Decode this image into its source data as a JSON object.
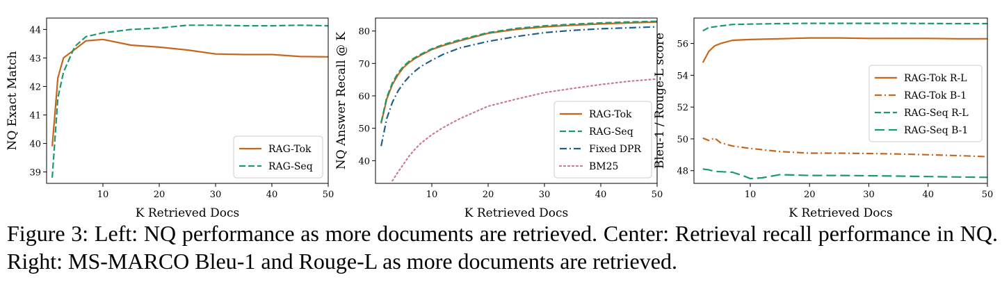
{
  "caption": "Figure 3: Left: NQ performance as more documents are retrieved. Center: Retrieval recall performance in NQ. Right: MS-MARCO Bleu-1 and Rouge-L as more documents are retrieved.",
  "chart_data": [
    {
      "type": "line",
      "xlabel": "K Retrieved Docs",
      "ylabel": "NQ Exact Match",
      "xlim": [
        0,
        50
      ],
      "ylim": [
        38.6,
        44.4
      ],
      "xticks": [
        10,
        20,
        30,
        40,
        50
      ],
      "yticks": [
        39,
        40,
        41,
        42,
        43,
        44
      ],
      "legend": "lower-right",
      "series": [
        {
          "name": "RAG-Tok",
          "color": "#c8651b",
          "dash": "solid",
          "points": [
            [
              1,
              39.9
            ],
            [
              2,
              42.3
            ],
            [
              3,
              43.0
            ],
            [
              5,
              43.3
            ],
            [
              7,
              43.6
            ],
            [
              10,
              43.65
            ],
            [
              15,
              43.45
            ],
            [
              20,
              43.38
            ],
            [
              25,
              43.28
            ],
            [
              30,
              43.14
            ],
            [
              35,
              43.12
            ],
            [
              40,
              43.12
            ],
            [
              45,
              43.05
            ],
            [
              50,
              43.04
            ]
          ]
        },
        {
          "name": "RAG-Seq",
          "color": "#1a9a6c",
          "dash": "dashed",
          "points": [
            [
              1,
              38.8
            ],
            [
              2,
              41.6
            ],
            [
              3,
              42.5
            ],
            [
              5,
              43.4
            ],
            [
              7,
              43.75
            ],
            [
              10,
              43.88
            ],
            [
              15,
              44.0
            ],
            [
              20,
              44.05
            ],
            [
              25,
              44.15
            ],
            [
              30,
              44.15
            ],
            [
              35,
              44.13
            ],
            [
              40,
              44.13
            ],
            [
              45,
              44.15
            ],
            [
              50,
              44.13
            ]
          ]
        }
      ]
    },
    {
      "type": "line",
      "xlabel": "K Retrieved Docs",
      "ylabel": "NQ Answer Recall @ K",
      "xlim": [
        0,
        50
      ],
      "ylim": [
        33,
        84
      ],
      "xticks": [
        10,
        20,
        30,
        40,
        50
      ],
      "yticks": [
        40,
        50,
        60,
        70,
        80
      ],
      "legend": "lower-right",
      "series": [
        {
          "name": "RAG-Tok",
          "color": "#c8651b",
          "dash": "solid",
          "points": [
            [
              1,
              51.5
            ],
            [
              2,
              59
            ],
            [
              3,
              63.5
            ],
            [
              4,
              66.5
            ],
            [
              5,
              68.8
            ],
            [
              6,
              70.3
            ],
            [
              7,
              71.5
            ],
            [
              8,
              72.5
            ],
            [
              10,
              74.3
            ],
            [
              12,
              75.5
            ],
            [
              15,
              77
            ],
            [
              20,
              79.3
            ],
            [
              25,
              80.5
            ],
            [
              30,
              81.3
            ],
            [
              35,
              81.8
            ],
            [
              40,
              82.2
            ],
            [
              45,
              82.5
            ],
            [
              50,
              82.8
            ]
          ]
        },
        {
          "name": "RAG-Seq",
          "color": "#1a9a6c",
          "dash": "dashed",
          "points": [
            [
              1,
              51.8
            ],
            [
              2,
              59.5
            ],
            [
              3,
              64
            ],
            [
              4,
              67
            ],
            [
              5,
              69.2
            ],
            [
              6,
              70.7
            ],
            [
              7,
              71.8
            ],
            [
              8,
              72.8
            ],
            [
              10,
              74.5
            ],
            [
              12,
              75.8
            ],
            [
              15,
              77.3
            ],
            [
              20,
              79.5
            ],
            [
              25,
              80.8
            ],
            [
              30,
              81.6
            ],
            [
              35,
              82.1
            ],
            [
              40,
              82.5
            ],
            [
              45,
              82.8
            ],
            [
              50,
              83.0
            ]
          ]
        },
        {
          "name": "Fixed DPR",
          "color": "#1f5f8b",
          "dash": "dashdot",
          "points": [
            [
              1,
              44.5
            ],
            [
              2,
              53
            ],
            [
              3,
              58
            ],
            [
              4,
              61.5
            ],
            [
              5,
              64
            ],
            [
              6,
              66
            ],
            [
              7,
              67.6
            ],
            [
              8,
              69
            ],
            [
              10,
              71
            ],
            [
              12,
              72.8
            ],
            [
              15,
              74.8
            ],
            [
              20,
              76.8
            ],
            [
              25,
              78.3
            ],
            [
              30,
              79.5
            ],
            [
              35,
              80.2
            ],
            [
              40,
              80.7
            ],
            [
              45,
              81.0
            ],
            [
              50,
              81.3
            ]
          ]
        },
        {
          "name": "BM25",
          "color": "#cc7a92",
          "dash": "dotted",
          "points": [
            [
              3,
              33.8
            ],
            [
              4,
              36.5
            ],
            [
              5,
              39
            ],
            [
              6,
              41.5
            ],
            [
              7,
              43.5
            ],
            [
              8,
              45.3
            ],
            [
              10,
              48
            ],
            [
              12,
              50.2
            ],
            [
              15,
              53
            ],
            [
              20,
              56.8
            ],
            [
              25,
              59
            ],
            [
              30,
              61
            ],
            [
              35,
              62.3
            ],
            [
              40,
              63.5
            ],
            [
              45,
              64.5
            ],
            [
              50,
              65.2
            ]
          ]
        }
      ]
    },
    {
      "type": "line",
      "xlabel": "K Retrieved Docs",
      "ylabel": "Bleu-1 / Rouge-L score",
      "xlim": [
        0.5,
        50
      ],
      "ylim": [
        47.2,
        57.6
      ],
      "xticks": [
        10,
        20,
        30,
        40,
        50
      ],
      "yticks": [
        48,
        50,
        52,
        54,
        56
      ],
      "legend": "center-right",
      "series": [
        {
          "name": "RAG-Tok R-L",
          "color": "#c8651b",
          "dash": "solid",
          "points": [
            [
              2,
              54.8
            ],
            [
              3,
              55.5
            ],
            [
              4,
              55.85
            ],
            [
              5,
              56.0
            ],
            [
              7,
              56.2
            ],
            [
              10,
              56.25
            ],
            [
              15,
              56.3
            ],
            [
              20,
              56.35
            ],
            [
              25,
              56.35
            ],
            [
              30,
              56.32
            ],
            [
              35,
              56.32
            ],
            [
              40,
              56.32
            ],
            [
              45,
              56.3
            ],
            [
              50,
              56.3
            ]
          ]
        },
        {
          "name": "RAG-Tok B-1",
          "color": "#c8651b",
          "dash": "dashdot",
          "points": [
            [
              2,
              50.05
            ],
            [
              3,
              49.9
            ],
            [
              4,
              50.05
            ],
            [
              5,
              49.75
            ],
            [
              7,
              49.55
            ],
            [
              10,
              49.4
            ],
            [
              15,
              49.2
            ],
            [
              20,
              49.1
            ],
            [
              25,
              49.1
            ],
            [
              30,
              49.08
            ],
            [
              35,
              49.05
            ],
            [
              40,
              49.0
            ],
            [
              45,
              48.95
            ],
            [
              50,
              48.88
            ]
          ]
        },
        {
          "name": "RAG-Seq R-L",
          "color": "#1a9a6c",
          "dash": "dashed",
          "points": [
            [
              2,
              56.8
            ],
            [
              3,
              57.0
            ],
            [
              5,
              57.1
            ],
            [
              7,
              57.2
            ],
            [
              10,
              57.22
            ],
            [
              15,
              57.25
            ],
            [
              20,
              57.27
            ],
            [
              25,
              57.27
            ],
            [
              30,
              57.27
            ],
            [
              35,
              57.27
            ],
            [
              40,
              57.26
            ],
            [
              45,
              57.25
            ],
            [
              50,
              57.25
            ]
          ]
        },
        {
          "name": "RAG-Seq B-1",
          "color": "#1a9a6c",
          "dash": "longdash",
          "points": [
            [
              2,
              48.1
            ],
            [
              3,
              48.05
            ],
            [
              4,
              47.95
            ],
            [
              7,
              47.9
            ],
            [
              9,
              47.65
            ],
            [
              10,
              47.5
            ],
            [
              12,
              47.55
            ],
            [
              15,
              47.75
            ],
            [
              20,
              47.7
            ],
            [
              25,
              47.7
            ],
            [
              30,
              47.68
            ],
            [
              35,
              47.66
            ],
            [
              40,
              47.63
            ],
            [
              45,
              47.6
            ],
            [
              50,
              47.58
            ]
          ]
        }
      ]
    }
  ]
}
